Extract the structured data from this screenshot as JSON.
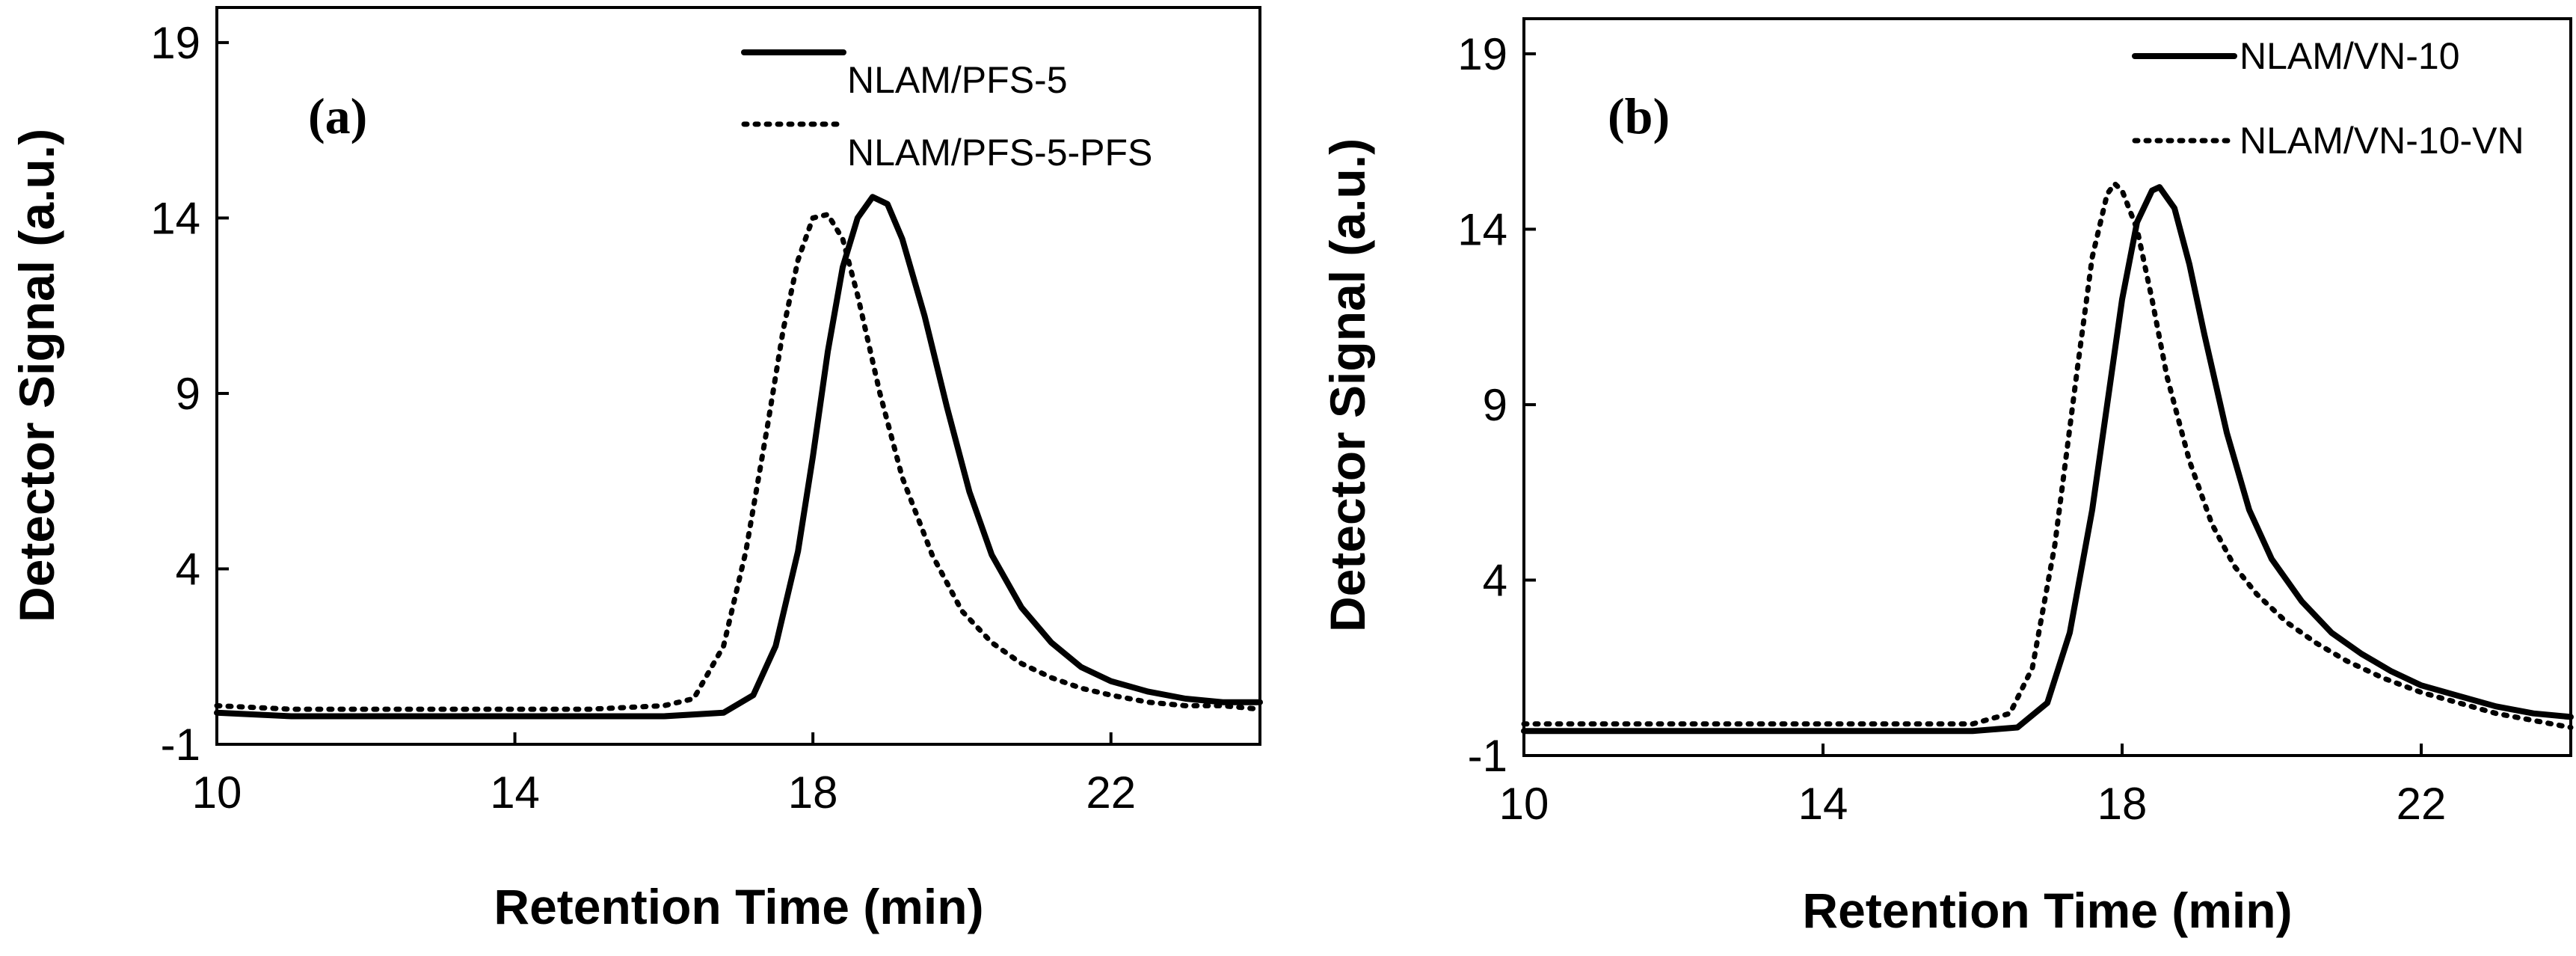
{
  "chart_data": [
    {
      "type": "line",
      "panel_label": "(a)",
      "xlabel": "Retention Time (min)",
      "ylabel": "Detector Signal (a.u.)",
      "xlim": [
        10,
        24
      ],
      "ylim": [
        -1,
        20
      ],
      "xticks": [
        10,
        14,
        18,
        22
      ],
      "yticks": [
        -1,
        4,
        9,
        14,
        19
      ],
      "grid": false,
      "legend_position": "top-right",
      "series": [
        {
          "name": "NLAM/PFS-5",
          "style": "solid",
          "x": [
            10,
            11,
            12,
            13,
            14,
            15,
            16,
            16.8,
            17.2,
            17.5,
            17.8,
            18.0,
            18.2,
            18.4,
            18.6,
            18.8,
            19.0,
            19.2,
            19.5,
            19.8,
            20.1,
            20.4,
            20.8,
            21.2,
            21.6,
            22.0,
            22.5,
            23.0,
            23.5,
            24.0
          ],
          "y": [
            -0.1,
            -0.2,
            -0.2,
            -0.2,
            -0.2,
            -0.2,
            -0.2,
            -0.1,
            0.4,
            1.8,
            4.5,
            7.2,
            10.2,
            12.6,
            14.0,
            14.6,
            14.4,
            13.4,
            11.2,
            8.6,
            6.2,
            4.4,
            2.9,
            1.9,
            1.2,
            0.8,
            0.5,
            0.3,
            0.2,
            0.2
          ]
        },
        {
          "name": "NLAM/PFS-5-PFS",
          "style": "dotted",
          "x": [
            10,
            11,
            12,
            13,
            14,
            15,
            16,
            16.4,
            16.8,
            17.1,
            17.4,
            17.6,
            17.8,
            18.0,
            18.2,
            18.4,
            18.6,
            18.9,
            19.2,
            19.6,
            20.0,
            20.4,
            20.8,
            21.2,
            21.6,
            22.0,
            22.5,
            23.0,
            23.5,
            24.0
          ],
          "y": [
            0.1,
            0.0,
            0.0,
            0.0,
            0.0,
            0.0,
            0.1,
            0.3,
            1.8,
            4.5,
            8.2,
            10.8,
            12.8,
            14.0,
            14.1,
            13.4,
            11.8,
            9.0,
            6.6,
            4.4,
            2.8,
            1.9,
            1.3,
            0.9,
            0.6,
            0.4,
            0.2,
            0.1,
            0.1,
            0.0
          ]
        }
      ]
    },
    {
      "type": "line",
      "panel_label": "(b)",
      "xlabel": "Retention Time (min)",
      "ylabel": "Detector Signal (a.u.)",
      "xlim": [
        10,
        24
      ],
      "ylim": [
        -1,
        20
      ],
      "xticks": [
        10,
        14,
        18,
        22
      ],
      "yticks": [
        -1,
        4,
        9,
        14,
        19
      ],
      "grid": false,
      "legend_position": "top-right",
      "series": [
        {
          "name": "NLAM/VN-10",
          "style": "solid",
          "x": [
            10,
            11,
            12,
            13,
            14,
            15,
            16,
            16.6,
            17.0,
            17.3,
            17.6,
            17.8,
            18.0,
            18.2,
            18.4,
            18.5,
            18.7,
            18.9,
            19.1,
            19.4,
            19.7,
            20.0,
            20.4,
            20.8,
            21.2,
            21.6,
            22.0,
            22.5,
            23.0,
            23.5,
            24.0
          ],
          "y": [
            -0.3,
            -0.3,
            -0.3,
            -0.3,
            -0.3,
            -0.3,
            -0.3,
            -0.2,
            0.5,
            2.5,
            6.0,
            9.0,
            12.0,
            14.2,
            15.1,
            15.2,
            14.6,
            13.0,
            11.0,
            8.2,
            6.0,
            4.6,
            3.4,
            2.5,
            1.9,
            1.4,
            1.0,
            0.7,
            0.4,
            0.2,
            0.1
          ]
        },
        {
          "name": "NLAM/VN-10-VN",
          "style": "dotted",
          "x": [
            10,
            11,
            12,
            13,
            14,
            15,
            16,
            16.5,
            16.8,
            17.1,
            17.4,
            17.6,
            17.8,
            17.9,
            18.0,
            18.2,
            18.4,
            18.6,
            18.9,
            19.2,
            19.5,
            19.8,
            20.2,
            20.6,
            21.0,
            21.5,
            22.0,
            22.5,
            23.0,
            23.5,
            24.0
          ],
          "y": [
            -0.1,
            -0.1,
            -0.1,
            -0.1,
            -0.1,
            -0.1,
            -0.1,
            0.2,
            1.5,
            5.0,
            10.0,
            13.2,
            15.0,
            15.3,
            15.1,
            14.0,
            12.0,
            9.8,
            7.4,
            5.6,
            4.4,
            3.6,
            2.8,
            2.2,
            1.7,
            1.2,
            0.8,
            0.5,
            0.2,
            0.0,
            -0.2
          ]
        }
      ]
    }
  ]
}
